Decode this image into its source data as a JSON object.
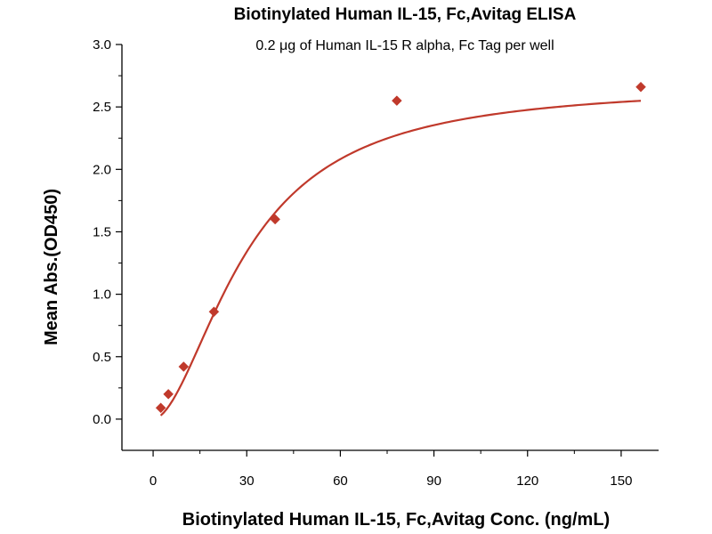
{
  "colors": {
    "series": "#c0392b",
    "axis": "#000000",
    "background": "#ffffff"
  },
  "chart_data": {
    "type": "scatter",
    "title": "Biotinylated Human IL-15, Fc,Avitag ELISA",
    "subtitle": "0.2 μg of Human IL-15 R alpha, Fc Tag per well",
    "xlabel": "Biotinylated Human IL-15, Fc,Avitag Conc. (ng/mL)",
    "ylabel": "Mean Abs.(OD450)",
    "xlim": [
      -10,
      162
    ],
    "ylim": [
      -0.25,
      3.0
    ],
    "x_ticks": [
      0,
      30,
      60,
      90,
      120,
      150
    ],
    "x_tick_labels": [
      "0",
      "30",
      "60",
      "90",
      "120",
      "150"
    ],
    "y_ticks": [
      0.0,
      0.5,
      1.0,
      1.5,
      2.0,
      2.5,
      3.0
    ],
    "y_tick_labels": [
      "0.0",
      "0.5",
      "1.0",
      "1.5",
      "2.0",
      "2.5",
      "3.0"
    ],
    "grid": false,
    "legend": "none",
    "marker": "diamond",
    "series": [
      {
        "x": [
          2.44,
          4.88,
          9.77,
          19.5,
          39.1,
          78.1,
          156.3
        ],
        "y": [
          0.09,
          0.2,
          0.42,
          0.86,
          1.6,
          2.55,
          2.66
        ]
      }
    ],
    "fit_curve": {
      "type": "4PL",
      "bottom": 0.0,
      "top": 2.68,
      "ec50": 30,
      "hill": 1.8
    }
  }
}
